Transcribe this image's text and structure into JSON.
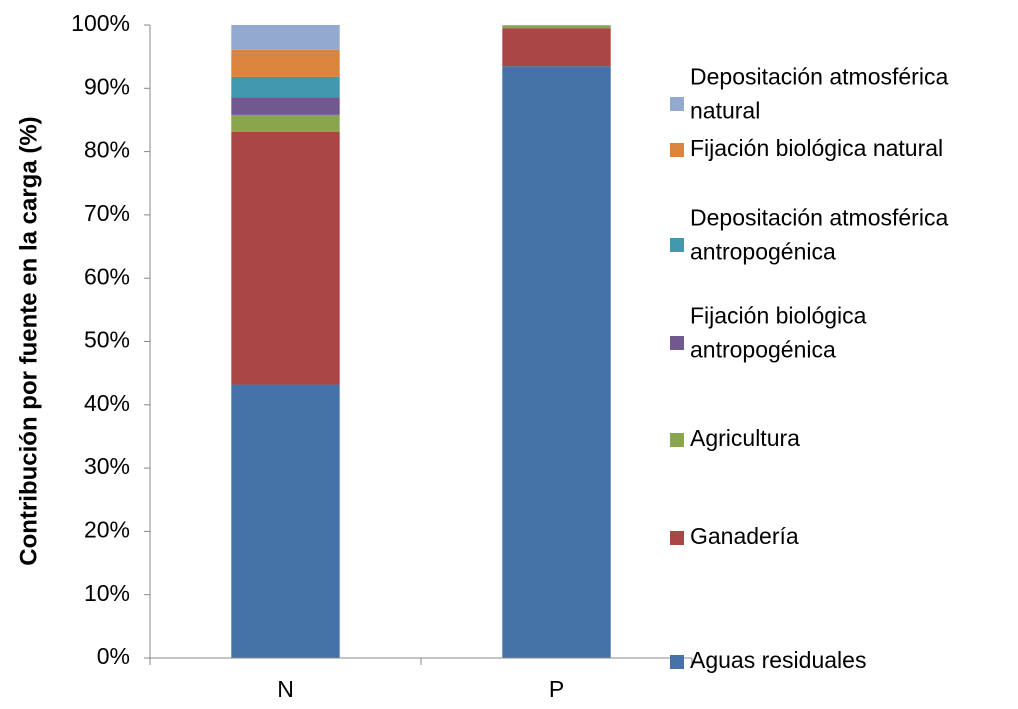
{
  "chart_data": {
    "type": "stacked_bar",
    "y_label": "Contribución por fuente en la carga (%)",
    "categories": [
      "N",
      "P"
    ],
    "series": [
      {
        "name": "Aguas residuales",
        "color": "#4572a7",
        "values": [
          43.2,
          93.5
        ]
      },
      {
        "name": "Ganadería",
        "color": "#aa4643",
        "values": [
          39.9,
          6
        ]
      },
      {
        "name": "Agricultura",
        "color": "#89a54e",
        "values": [
          2.7,
          0.4
        ]
      },
      {
        "name": "Fijación biológica antropogénica",
        "color": "#71588f",
        "values": [
          2.8,
          0
        ]
      },
      {
        "name": "Depositación atmosférica antropogénica",
        "color": "#4198af",
        "values": [
          3.2,
          0
        ]
      },
      {
        "name": "Fijación biológica natural",
        "color": "#db843d",
        "values": [
          4.3,
          0
        ]
      },
      {
        "name": "Depositación atmosférica natural",
        "color": "#93a9cf",
        "values": [
          3.9,
          0.1
        ]
      }
    ],
    "ylim": [
      0,
      100
    ],
    "yticks": [
      {
        "value": 0,
        "label": "0%"
      },
      {
        "value": 10,
        "label": "10%"
      },
      {
        "value": 20,
        "label": "20%"
      },
      {
        "value": 30,
        "label": "30%"
      },
      {
        "value": 40,
        "label": "40%"
      },
      {
        "value": 50,
        "label": "50%"
      },
      {
        "value": 60,
        "label": "60%"
      },
      {
        "value": 70,
        "label": "70%"
      },
      {
        "value": 80,
        "label": "80%"
      },
      {
        "value": 90,
        "label": "90%"
      },
      {
        "value": 100,
        "label": "100%"
      }
    ],
    "legend": "right"
  }
}
